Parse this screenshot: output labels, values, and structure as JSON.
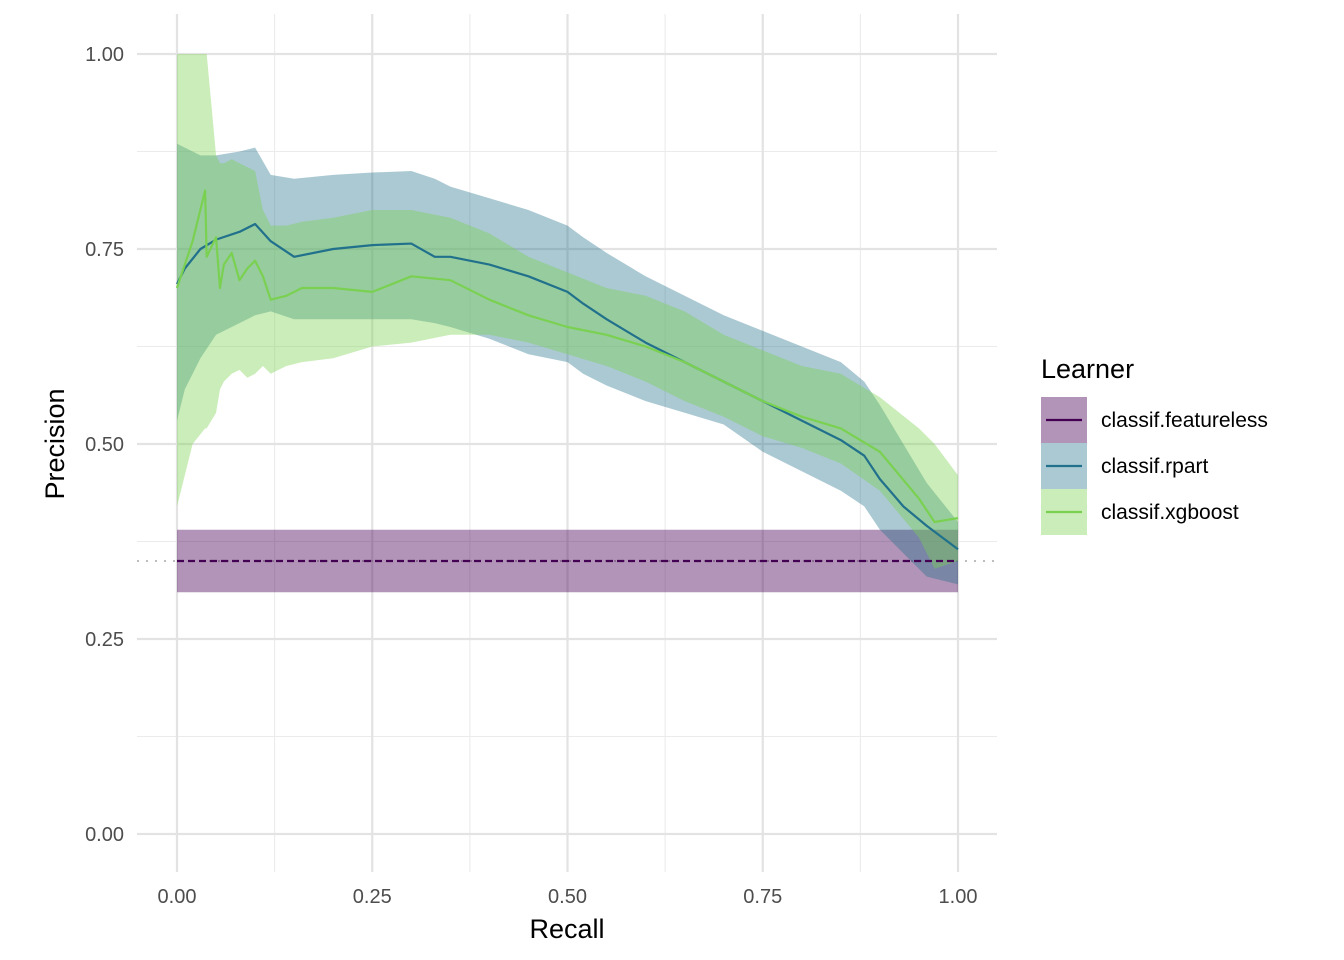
{
  "chart_data": {
    "type": "line",
    "xlabel": "Recall",
    "ylabel": "Precision",
    "xlim": [
      0,
      1
    ],
    "ylim": [
      0,
      1
    ],
    "xticks": [
      {
        "value": 0.0,
        "label": "0.00"
      },
      {
        "value": 0.25,
        "label": "0.25"
      },
      {
        "value": 0.5,
        "label": "0.50"
      },
      {
        "value": 0.75,
        "label": "0.75"
      },
      {
        "value": 1.0,
        "label": "1.00"
      }
    ],
    "yticks": [
      {
        "value": 0.0,
        "label": "0.00"
      },
      {
        "value": 0.25,
        "label": "0.25"
      },
      {
        "value": 0.5,
        "label": "0.50"
      },
      {
        "value": 0.75,
        "label": "0.75"
      },
      {
        "value": 1.0,
        "label": "1.00"
      }
    ],
    "grid": true,
    "baseline": {
      "value": 0.35,
      "style": "dotted",
      "color": "#bdbdbd"
    },
    "legend": {
      "title": "Learner",
      "position": "right"
    },
    "series": [
      {
        "name": "classif.featureless",
        "color": "#440154",
        "line_style": "dashed",
        "band_opacity": 0.42,
        "x": [
          0.0,
          1.0
        ],
        "y": [
          0.35,
          0.35
        ],
        "lower": [
          0.31,
          0.31
        ],
        "upper": [
          0.39,
          0.39
        ]
      },
      {
        "name": "classif.rpart",
        "color": "#21718c",
        "line_style": "solid",
        "band_opacity": 0.38,
        "x": [
          0.0,
          0.01,
          0.03,
          0.05,
          0.08,
          0.1,
          0.12,
          0.15,
          0.2,
          0.25,
          0.3,
          0.33,
          0.35,
          0.4,
          0.45,
          0.5,
          0.52,
          0.55,
          0.6,
          0.65,
          0.7,
          0.75,
          0.8,
          0.85,
          0.88,
          0.9,
          0.93,
          0.96,
          1.0
        ],
        "y": [
          0.705,
          0.725,
          0.75,
          0.762,
          0.772,
          0.782,
          0.76,
          0.74,
          0.75,
          0.755,
          0.757,
          0.74,
          0.74,
          0.73,
          0.715,
          0.695,
          0.68,
          0.66,
          0.63,
          0.605,
          0.58,
          0.555,
          0.53,
          0.505,
          0.485,
          0.455,
          0.42,
          0.395,
          0.365
        ],
        "lower": [
          0.53,
          0.57,
          0.61,
          0.64,
          0.655,
          0.665,
          0.67,
          0.66,
          0.66,
          0.66,
          0.66,
          0.655,
          0.65,
          0.635,
          0.615,
          0.605,
          0.59,
          0.575,
          0.555,
          0.54,
          0.525,
          0.49,
          0.465,
          0.44,
          0.42,
          0.39,
          0.36,
          0.33,
          0.32
        ],
        "upper": [
          0.885,
          0.88,
          0.87,
          0.87,
          0.875,
          0.88,
          0.845,
          0.84,
          0.845,
          0.848,
          0.85,
          0.84,
          0.83,
          0.815,
          0.8,
          0.78,
          0.765,
          0.745,
          0.715,
          0.69,
          0.665,
          0.645,
          0.625,
          0.605,
          0.58,
          0.55,
          0.5,
          0.45,
          0.4
        ]
      },
      {
        "name": "classif.xgboost",
        "color": "#7ad151",
        "line_style": "solid",
        "band_opacity": 0.4,
        "x": [
          0.0,
          0.02,
          0.036,
          0.038,
          0.05,
          0.055,
          0.06,
          0.07,
          0.08,
          0.09,
          0.1,
          0.11,
          0.12,
          0.14,
          0.16,
          0.2,
          0.25,
          0.3,
          0.35,
          0.4,
          0.45,
          0.5,
          0.55,
          0.6,
          0.65,
          0.7,
          0.75,
          0.8,
          0.85,
          0.9,
          0.95,
          0.97,
          1.0
        ],
        "y": [
          0.7,
          0.76,
          0.825,
          0.74,
          0.765,
          0.7,
          0.73,
          0.745,
          0.71,
          0.725,
          0.735,
          0.715,
          0.685,
          0.69,
          0.7,
          0.7,
          0.695,
          0.715,
          0.71,
          0.685,
          0.665,
          0.65,
          0.64,
          0.625,
          0.605,
          0.58,
          0.555,
          0.535,
          0.52,
          0.49,
          0.43,
          0.4,
          0.405
        ],
        "lower": [
          0.42,
          0.5,
          0.52,
          0.52,
          0.54,
          0.57,
          0.58,
          0.59,
          0.595,
          0.585,
          0.59,
          0.6,
          0.59,
          0.6,
          0.605,
          0.61,
          0.625,
          0.63,
          0.64,
          0.64,
          0.63,
          0.615,
          0.6,
          0.58,
          0.555,
          0.535,
          0.51,
          0.495,
          0.475,
          0.44,
          0.38,
          0.34,
          0.35
        ],
        "upper": [
          1.0,
          1.0,
          1.0,
          1.0,
          0.87,
          0.86,
          0.86,
          0.865,
          0.86,
          0.855,
          0.85,
          0.8,
          0.78,
          0.78,
          0.785,
          0.79,
          0.8,
          0.8,
          0.79,
          0.77,
          0.74,
          0.72,
          0.7,
          0.69,
          0.67,
          0.64,
          0.62,
          0.6,
          0.59,
          0.56,
          0.52,
          0.5,
          0.46
        ]
      }
    ]
  }
}
